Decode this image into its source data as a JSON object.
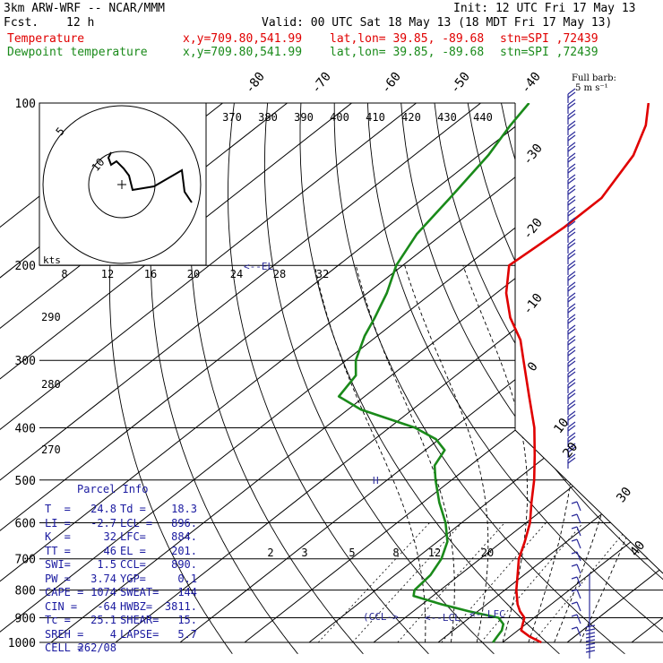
{
  "header": {
    "title": "3km ARW-WRF -- NCAR/MMM",
    "init": "Init: 12 UTC Fri 17 May 13",
    "fcst_label": "Fcst.",
    "fcst_value": "12 h",
    "valid": "Valid: 00 UTC Sat 18 May 13 (18 MDT Fri 17 May 13)",
    "line_temp": {
      "name": "Temperature",
      "xy": "x,y=709.80,541.99",
      "latlon": "lat,lon= 39.85, -89.68",
      "stn": "stn=SPI ,72439"
    },
    "line_dew": {
      "name": "Dewpoint temperature",
      "xy": "x,y=709.80,541.99",
      "latlon": "lat,lon= 39.85, -89.68",
      "stn": "stn=SPI ,72439"
    }
  },
  "wind_legend": {
    "line1": "Full barb:",
    "line2": "5 m s⁻¹"
  },
  "hodograph": {
    "units": "kts",
    "ring_label": "5",
    "inner_label": "10",
    "speed_ticks": [
      "8",
      "12",
      "16",
      "20",
      "24",
      "28",
      "32"
    ]
  },
  "labels": {
    "el": "EL",
    "lfc": "LFC",
    "lcl": "LCL",
    "ccl": "CCL",
    "mixing_ratio_ticks": [
      "2",
      "3",
      "5",
      "8",
      "12",
      "20"
    ],
    "theta_ticks": [
      "370",
      "380",
      "390",
      "400",
      "410",
      "420",
      "430",
      "440"
    ],
    "dry_adiabat_left": [
      "290",
      "280",
      "270"
    ]
  },
  "colors": {
    "temperature": "#e00000",
    "dewpoint": "#1a8a1a",
    "wind": "#2a2a9a",
    "grid": "#000000"
  },
  "parcel_info": {
    "title": "Parcel Info",
    "rows": [
      [
        "T  =",
        "24.8",
        "Td =",
        "18.3"
      ],
      [
        "LI =",
        "-2.7",
        "LCL =",
        "896."
      ],
      [
        "K  =",
        "32",
        "LFC=",
        "884."
      ],
      [
        "TT =",
        "46",
        "EL =",
        "201."
      ],
      [
        "SWI=",
        "1.5",
        "CCL=",
        "890."
      ],
      [
        "PW =",
        "3.74",
        "YGP=",
        "0.1"
      ],
      [
        "CAPE =",
        "1074",
        "SWEAT=",
        "144"
      ],
      [
        "CIN =",
        "-64",
        "HWBZ=",
        "3811."
      ],
      [
        "Tc =",
        "25.1",
        "SHEAR=",
        "15."
      ],
      [
        "SREH =",
        "4",
        "LAPSE=",
        "5.7"
      ],
      [
        "CELL =",
        "262/08",
        "",
        ""
      ]
    ]
  },
  "chart_data": {
    "type": "line",
    "chart_kind": "skew-T log-p sounding",
    "pressure_levels": [
      "100",
      "200",
      "300",
      "400",
      "500",
      "600",
      "700",
      "800",
      "900",
      "1000"
    ],
    "isotherm_labels": [
      "-80",
      "-70",
      "-60",
      "-50",
      "-40",
      "-30",
      "-20",
      "-10",
      "0",
      "10",
      "20",
      "30",
      "40"
    ],
    "xlim": [
      -100,
      50
    ],
    "ylim": [
      1000,
      100
    ],
    "log_pressure": true,
    "series": [
      {
        "name": "Temperature",
        "color": "#e00000",
        "points": [
          [
            1000,
            26.0
          ],
          [
            975,
            23.0
          ],
          [
            950,
            20.5
          ],
          [
            925,
            19.5
          ],
          [
            900,
            18.5
          ],
          [
            875,
            16.5
          ],
          [
            850,
            14.8
          ],
          [
            800,
            11.8
          ],
          [
            750,
            9.0
          ],
          [
            700,
            6.0
          ],
          [
            650,
            3.5
          ],
          [
            600,
            0.6
          ],
          [
            550,
            -3.2
          ],
          [
            500,
            -7.2
          ],
          [
            450,
            -12.0
          ],
          [
            400,
            -17.5
          ],
          [
            350,
            -24.5
          ],
          [
            300,
            -32.5
          ],
          [
            275,
            -37.0
          ],
          [
            250,
            -43.0
          ],
          [
            225,
            -48.5
          ],
          [
            200,
            -53.5
          ],
          [
            185,
            -53.0
          ],
          [
            170,
            -52.5
          ],
          [
            150,
            -52.5
          ],
          [
            125,
            -56.0
          ],
          [
            110,
            -60.0
          ],
          [
            100,
            -64.0
          ]
        ]
      },
      {
        "name": "Dewpoint temperature",
        "color": "#1a8a1a",
        "points": [
          [
            1000,
            18.5
          ],
          [
            975,
            18.0
          ],
          [
            950,
            17.5
          ],
          [
            925,
            16.5
          ],
          [
            900,
            14.5
          ],
          [
            875,
            8.5
          ],
          [
            850,
            3.0
          ],
          [
            820,
            -3.0
          ],
          [
            800,
            -4.0
          ],
          [
            750,
            -4.5
          ],
          [
            700,
            -6.0
          ],
          [
            650,
            -8.5
          ],
          [
            600,
            -12.5
          ],
          [
            550,
            -17.5
          ],
          [
            500,
            -22.5
          ],
          [
            470,
            -25.5
          ],
          [
            440,
            -27.0
          ],
          [
            420,
            -30.5
          ],
          [
            400,
            -36.0
          ],
          [
            370,
            -48.0
          ],
          [
            350,
            -54.0
          ],
          [
            320,
            -55.5
          ],
          [
            300,
            -58.5
          ],
          [
            270,
            -62.0
          ],
          [
            250,
            -64.0
          ],
          [
            225,
            -67.0
          ],
          [
            200,
            -71.0
          ],
          [
            175,
            -74.0
          ],
          [
            150,
            -76.0
          ],
          [
            125,
            -78.5
          ],
          [
            110,
            -81.0
          ],
          [
            100,
            -82.5
          ]
        ]
      }
    ]
  }
}
